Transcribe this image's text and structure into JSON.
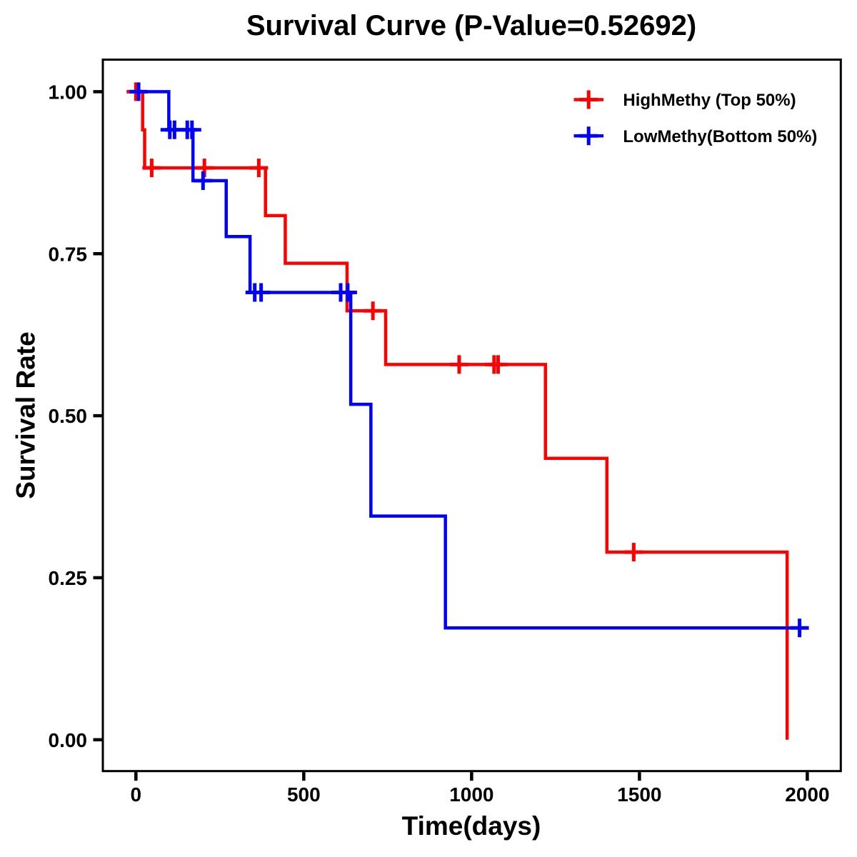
{
  "chart_data": {
    "type": "line",
    "subtype": "kaplan_meier_step",
    "title": "Survival Curve (P-Value=0.52692)",
    "xlabel": "Time(days)",
    "ylabel": "Survival Rate",
    "xlim": [
      0,
      2000
    ],
    "ylim": [
      0.0,
      1.0
    ],
    "grid": false,
    "frame": true,
    "legend_position": "upper right",
    "xticks": [
      {
        "value": 0,
        "label": "0"
      },
      {
        "value": 500,
        "label": "500"
      },
      {
        "value": 1000,
        "label": "1000"
      },
      {
        "value": 1500,
        "label": "1500"
      },
      {
        "value": 2000,
        "label": "2000"
      }
    ],
    "yticks": [
      {
        "value": 0.0,
        "label": "0.00"
      },
      {
        "value": 0.25,
        "label": "0.25"
      },
      {
        "value": 0.5,
        "label": "0.50"
      },
      {
        "value": 0.75,
        "label": "0.75"
      },
      {
        "value": 1.0,
        "label": "1.00"
      }
    ],
    "series": [
      {
        "id": "highmethy",
        "name": "HighMethy (Top 50%)",
        "color": "#ff0000",
        "marker": "plus",
        "start": {
          "t": 0,
          "s": 1.0
        },
        "steps": [
          {
            "t": 20,
            "s": 0.941176
          },
          {
            "t": 26,
            "s": 0.882353
          },
          {
            "t": 386,
            "s": 0.808824
          },
          {
            "t": 445,
            "s": 0.735294
          },
          {
            "t": 629,
            "s": 0.661765
          },
          {
            "t": 744,
            "s": 0.579044
          },
          {
            "t": 1220,
            "s": 0.434283
          },
          {
            "t": 1403,
            "s": 0.289522
          },
          {
            "t": 1940,
            "s": 0.0
          }
        ],
        "tail_t": null,
        "censors": [
          {
            "t": 0,
            "s": 1.0
          },
          {
            "t": 47,
            "s": 0.882353
          },
          {
            "t": 204,
            "s": 0.882353
          },
          {
            "t": 366,
            "s": 0.882353
          },
          {
            "t": 706,
            "s": 0.661765
          },
          {
            "t": 963,
            "s": 0.579044
          },
          {
            "t": 1067,
            "s": 0.579044
          },
          {
            "t": 1079,
            "s": 0.579044
          },
          {
            "t": 1483,
            "s": 0.289522
          }
        ]
      },
      {
        "id": "lowmethy",
        "name": "LowMethy(Bottom 50%)",
        "color": "#0000ff",
        "marker": "plus",
        "start": {
          "t": 0,
          "s": 1.0
        },
        "steps": [
          {
            "t": 98,
            "s": 0.941176
          },
          {
            "t": 170,
            "s": 0.862745
          },
          {
            "t": 269,
            "s": 0.776471
          },
          {
            "t": 340,
            "s": 0.690196
          },
          {
            "t": 640,
            "s": 0.517647
          },
          {
            "t": 700,
            "s": 0.345098
          },
          {
            "t": 922,
            "s": 0.172549
          }
        ],
        "tail_t": 1977,
        "censors": [
          {
            "t": 8,
            "s": 1.0
          },
          {
            "t": 101,
            "s": 0.941176
          },
          {
            "t": 115,
            "s": 0.941176
          },
          {
            "t": 153,
            "s": 0.941176
          },
          {
            "t": 167,
            "s": 0.941176
          },
          {
            "t": 200,
            "s": 0.862745
          },
          {
            "t": 354,
            "s": 0.690196
          },
          {
            "t": 373,
            "s": 0.690196
          },
          {
            "t": 610,
            "s": 0.690196
          },
          {
            "t": 631,
            "s": 0.690196
          },
          {
            "t": 1977,
            "s": 0.172549
          }
        ]
      }
    ]
  },
  "legend": {
    "items": [
      {
        "label": "HighMethy (Top 50%)",
        "color": "#ff0000",
        "marker": "plus-icon"
      },
      {
        "label": "LowMethy(Bottom 50%)",
        "color": "#0000ff",
        "marker": "plus-icon"
      }
    ]
  },
  "colors": {
    "high_methy": "#ff0000",
    "low_methy": "#0000ff",
    "axis": "#000000",
    "background": "#ffffff"
  }
}
